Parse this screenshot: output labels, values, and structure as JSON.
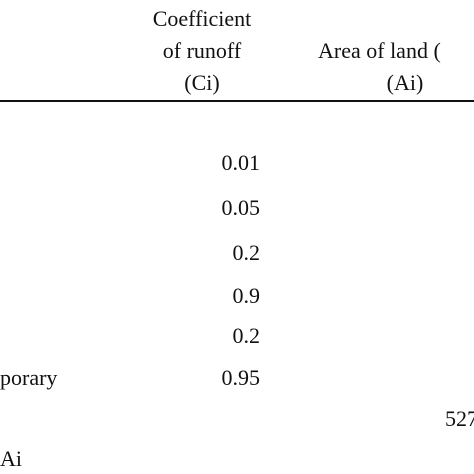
{
  "table": {
    "headers": {
      "coefficient": {
        "line1": "Coefficient",
        "line2": "of runoff",
        "line3": "(Ci)"
      },
      "area": {
        "line1": "Area of land (",
        "line2": "(Ai)"
      }
    },
    "coefficient_values": [
      "0.01",
      "0.05",
      "0.2",
      "0.9",
      "0.2",
      "0.95"
    ],
    "row_label_fragment": "porary",
    "total_fragment": "527",
    "footer_fragment": "Ai"
  }
}
